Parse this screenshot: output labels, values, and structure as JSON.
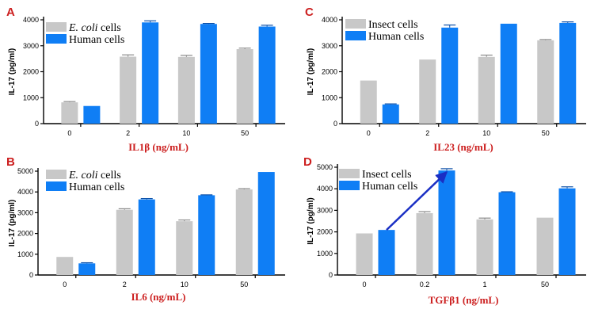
{
  "colors": {
    "gray_series": "#c8c8c8",
    "blue_series": "#0f7ef5",
    "axis": "#000000",
    "panel_letter": "#cc1f1f",
    "xlabel": "#cc1f1f",
    "arrow": "#1a2fc4"
  },
  "chart_data": [
    {
      "panel": "A",
      "type": "bar",
      "ylabel": "IL-17 (pg/ml)",
      "xlabel": "IL1β (ng/mL)",
      "ylim": [
        0,
        4000
      ],
      "yticks": [
        0,
        1000,
        2000,
        3000,
        4000
      ],
      "categories": [
        "0",
        "2",
        "10",
        "50"
      ],
      "legend_position": "top-left",
      "series": [
        {
          "name": "E. coli cells",
          "name_italic": "E. coli",
          "name_rest": " cells",
          "color": "gray",
          "values": [
            820,
            2580,
            2570,
            2870
          ],
          "errors": [
            30,
            70,
            60,
            40
          ]
        },
        {
          "name": "Human cells",
          "color": "blue",
          "values": [
            680,
            3900,
            3840,
            3740
          ],
          "errors": [
            0,
            60,
            20,
            50
          ]
        }
      ]
    },
    {
      "panel": "B",
      "type": "bar",
      "ylabel": "IL-17 (pg/ml)",
      "xlabel": "IL6 (ng/mL)",
      "ylim": [
        0,
        5000
      ],
      "yticks": [
        0,
        1000,
        2000,
        3000,
        4000,
        5000
      ],
      "categories": [
        "0",
        "2",
        "10",
        "50"
      ],
      "legend_position": "top-left",
      "series": [
        {
          "name": "E. coli cells",
          "name_italic": "E. coli",
          "name_rest": " cells",
          "color": "gray",
          "values": [
            870,
            3140,
            2590,
            4120
          ],
          "errors": [
            0,
            50,
            60,
            40
          ]
        },
        {
          "name": "Human cells",
          "color": "blue",
          "values": [
            560,
            3640,
            3840,
            4960
          ],
          "errors": [
            30,
            40,
            20,
            0
          ]
        }
      ]
    },
    {
      "panel": "C",
      "type": "bar",
      "ylabel": "IL-17 (pg/ml)",
      "xlabel": "IL23 (ng/mL)",
      "ylim": [
        0,
        4000
      ],
      "yticks": [
        0,
        1000,
        2000,
        3000,
        4000
      ],
      "categories": [
        "0",
        "2",
        "10",
        "50"
      ],
      "legend_position": "top-left",
      "series": [
        {
          "name": "Insect cells",
          "color": "gray",
          "values": [
            1660,
            2470,
            2570,
            3210
          ],
          "errors": [
            0,
            0,
            70,
            30
          ]
        },
        {
          "name": "Human cells",
          "color": "blue",
          "values": [
            740,
            3700,
            3850,
            3880
          ],
          "errors": [
            20,
            100,
            0,
            40
          ]
        }
      ]
    },
    {
      "panel": "D",
      "type": "bar",
      "ylabel": "IL-17 (pg/ml)",
      "xlabel": "TGFβ1 (ng/mL)",
      "ylim": [
        0,
        5000
      ],
      "yticks": [
        0,
        1000,
        2000,
        3000,
        4000,
        5000
      ],
      "categories": [
        "0",
        "0.2",
        "1",
        "50"
      ],
      "legend_position": "top-left",
      "annotation": "arrow from Human cells at 0 to Human cells at 0.2",
      "series": [
        {
          "name": "Insect cells",
          "color": "gray",
          "values": [
            1930,
            2870,
            2580,
            2660
          ],
          "errors": [
            0,
            70,
            60,
            0
          ]
        },
        {
          "name": "Human cells",
          "color": "blue",
          "values": [
            2090,
            4850,
            3840,
            4020
          ],
          "errors": [
            0,
            80,
            20,
            70
          ]
        }
      ]
    }
  ]
}
